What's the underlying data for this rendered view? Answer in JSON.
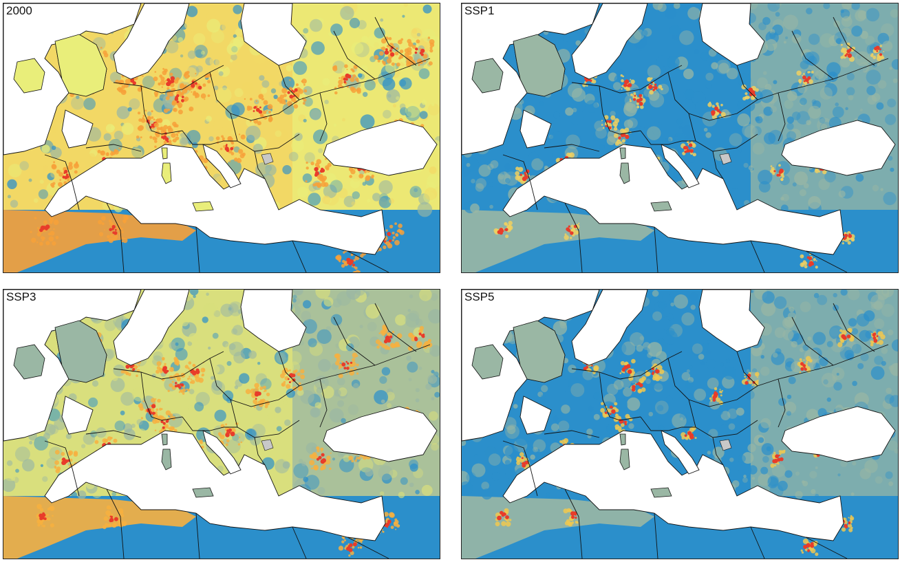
{
  "panels": [
    {
      "label": "2000",
      "scenario": "baseline",
      "palette": {
        "land_main": "#f2d865",
        "land_alt": "#e9ee7a",
        "hot": "#f7a13a",
        "very_hot": "#e83c2a",
        "low": "#2b8fcb",
        "mid": "#9ab7a4"
      }
    },
    {
      "label": "SSP1",
      "scenario": "ssp1",
      "palette": {
        "land_main": "#2b8fcb",
        "land_alt": "#9ab7a4",
        "hot": "#f0d060",
        "very_hot": "#e83c2a",
        "low": "#2b8fcb",
        "mid": "#9ab7a4"
      }
    },
    {
      "label": "SSP3",
      "scenario": "ssp3",
      "palette": {
        "land_main": "#d9df7d",
        "land_alt": "#9ab7a4",
        "hot": "#f7b040",
        "very_hot": "#e83c2a",
        "low": "#2b8fcb",
        "mid": "#9ab7a4"
      }
    },
    {
      "label": "SSP5",
      "scenario": "ssp5",
      "palette": {
        "land_main": "#2b8fcb",
        "land_alt": "#9ab7a4",
        "hot": "#f0c850",
        "very_hot": "#e83c2a",
        "low": "#2b8fcb",
        "mid": "#9ab7a4"
      }
    }
  ],
  "colors": {
    "sea": "#ffffff",
    "border": "#111111",
    "no_data": "#c8c8c8",
    "ocean_low": "#2b8fcb"
  }
}
